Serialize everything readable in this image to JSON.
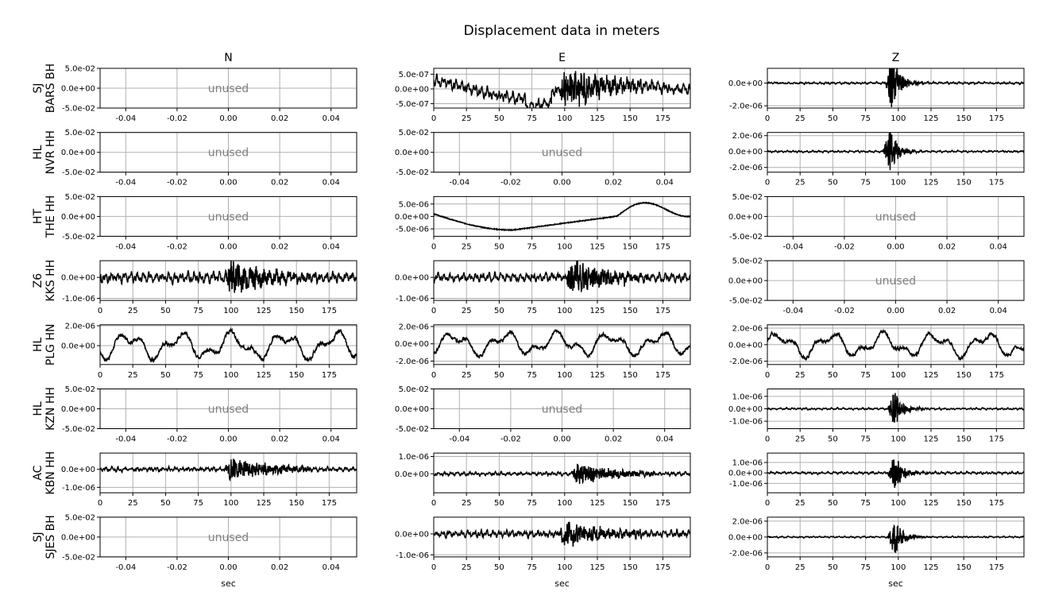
{
  "chart_data": {
    "type": "line",
    "title": "Displacement data in meters",
    "columns": [
      "N",
      "E",
      "Z"
    ],
    "xlabel": "sec",
    "unused_label": "unused",
    "line_color": "#000000",
    "unused_color": "#808080",
    "grid_color": "#b0b0b0",
    "grid": true,
    "stations": [
      {
        "network": "SJ",
        "label": "BARS BH"
      },
      {
        "network": "HL",
        "label": "NVR HH"
      },
      {
        "network": "HT",
        "label": "THE HH"
      },
      {
        "network": "Z6",
        "label": "KKS HH"
      },
      {
        "network": "HL",
        "label": "PLG HN"
      },
      {
        "network": "HL",
        "label": "KZN HH"
      },
      {
        "network": "AC",
        "label": "KBN HH"
      },
      {
        "network": "SJ",
        "label": "SJES BH"
      }
    ],
    "unused_axis": {
      "xticks": [
        "-0.04",
        "-0.02",
        "0.00",
        "0.02",
        "0.04"
      ],
      "yticks": [
        "5.0e-02",
        "0.0e+00",
        "-5.0e-02"
      ]
    },
    "time_xticks": [
      "0",
      "25",
      "50",
      "75",
      "100",
      "125",
      "150",
      "175"
    ],
    "panels": [
      [
        {
          "used": false
        },
        {
          "used": true,
          "style": "mixed",
          "amp": 2.5e-07,
          "burst_at": 100,
          "burst_amp": 6.5e-07,
          "wander": 3e-07,
          "ylim": [
            -6.5e-07,
            7e-07
          ],
          "yticks": [
            5e-07,
            0,
            -5e-07
          ],
          "ytick_labels": [
            "5.0e-07",
            "0.0e+00",
            "-5.0e-07"
          ],
          "seed": 11
        },
        {
          "used": true,
          "style": "spike",
          "amp": 1.2e-07,
          "burst_at": 95,
          "burst_amp": 2.5e-06,
          "ylim": [
            -2.2e-06,
            1.3e-06
          ],
          "yticks": [
            0,
            -2e-06
          ],
          "ytick_labels": [
            "0.0e+00",
            "-2.0e-06"
          ],
          "seed": 12
        }
      ],
      [
        {
          "used": false
        },
        {
          "used": false
        },
        {
          "used": true,
          "style": "spike",
          "amp": 1.5e-07,
          "burst_at": 93,
          "burst_amp": 3e-06,
          "ylim": [
            -2.6e-06,
            2.4e-06
          ],
          "yticks": [
            2e-06,
            0,
            -2e-06
          ],
          "ytick_labels": [
            "2.0e-06",
            "0.0e+00",
            "-2.0e-06"
          ],
          "seed": 13
        }
      ],
      [
        {
          "used": false
        },
        {
          "used": true,
          "style": "smooth",
          "ylim": [
            -8e-06,
            8e-06
          ],
          "yticks": [
            5e-06,
            0,
            -5e-06
          ],
          "ytick_labels": [
            "5.0e-06",
            "0.0e+00",
            "-5.0e-06"
          ],
          "seed": 14
        },
        {
          "used": false
        }
      ],
      [
        {
          "used": true,
          "style": "noise",
          "amp": 3e-07,
          "burst_at": 100,
          "burst_amp": 8e-07,
          "ylim": [
            -1.1e-06,
            8e-07
          ],
          "yticks": [
            0,
            -1e-06
          ],
          "ytick_labels": [
            "0.0e+00",
            "-1.0e-06"
          ],
          "seed": 15
        },
        {
          "used": true,
          "style": "noise",
          "amp": 2.5e-07,
          "burst_at": 105,
          "burst_amp": 8e-07,
          "ylim": [
            -1.1e-06,
            8e-07
          ],
          "yticks": [
            0,
            -1e-06
          ],
          "ytick_labels": [
            "0.0e+00",
            "-1.0e-06"
          ],
          "seed": 16
        },
        {
          "used": false
        }
      ],
      [
        {
          "used": true,
          "style": "wave",
          "amp": 1.2e-06,
          "ylim": [
            -1.9e-06,
            2.1e-06
          ],
          "yticks": [
            2e-06,
            0
          ],
          "ytick_labels": [
            "2.0e-06",
            "0.0e+00"
          ],
          "seed": 17
        },
        {
          "used": true,
          "style": "wave",
          "amp": 1.2e-06,
          "ylim": [
            -2.4e-06,
            2.2e-06
          ],
          "yticks": [
            2e-06,
            0,
            -2e-06
          ],
          "ytick_labels": [
            "2.0e-06",
            "0.0e+00",
            "-2.0e-06"
          ],
          "seed": 18
        },
        {
          "used": true,
          "style": "wave",
          "amp": 1.3e-06,
          "ylim": [
            -2.4e-06,
            2.4e-06
          ],
          "yticks": [
            2e-06,
            0,
            -2e-06
          ],
          "ytick_labels": [
            "2.0e-06",
            "0.0e+00",
            "-2.0e-06"
          ],
          "seed": 19
        }
      ],
      [
        {
          "used": false
        },
        {
          "used": false
        },
        {
          "used": true,
          "style": "spike",
          "amp": 1e-07,
          "burst_at": 97,
          "burst_amp": 1.5e-06,
          "ylim": [
            -1.6e-06,
            1.6e-06
          ],
          "yticks": [
            1e-06,
            0,
            -1e-06
          ],
          "ytick_labels": [
            "1.0e-06",
            "0.0e+00",
            "-1.0e-06"
          ],
          "seed": 20
        }
      ],
      [
        {
          "used": true,
          "style": "noise",
          "amp": 1.5e-07,
          "burst_at": 100,
          "burst_amp": 6.5e-07,
          "ylim": [
            -1.3e-06,
            9e-07
          ],
          "yticks": [
            0,
            -1e-06
          ],
          "ytick_labels": [
            "0.0e+00",
            "-1.0e-06"
          ],
          "seed": 21
        },
        {
          "used": true,
          "style": "noise",
          "amp": 1.3e-07,
          "burst_at": 110,
          "burst_amp": 6e-07,
          "ylim": [
            -1.1e-06,
            1.2e-06
          ],
          "yticks": [
            1e-06,
            0
          ],
          "ytick_labels": [
            "1.0e-06",
            "0.0e+00"
          ],
          "seed": 22
        },
        {
          "used": true,
          "style": "spike",
          "amp": 1.5e-07,
          "burst_at": 97,
          "burst_amp": 1.8e-06,
          "ylim": [
            -1.9e-06,
            1.9e-06
          ],
          "yticks": [
            1e-06,
            0,
            -1e-06
          ],
          "ytick_labels": [
            "1.0e-06",
            "0.0e+00",
            "-1.0e-06"
          ],
          "seed": 23
        }
      ],
      [
        {
          "used": false
        },
        {
          "used": true,
          "style": "noise",
          "amp": 2e-07,
          "burst_at": 100,
          "burst_amp": 6.5e-07,
          "ylim": [
            -1.1e-06,
            8e-07
          ],
          "yticks": [
            0,
            -1e-06
          ],
          "ytick_labels": [
            "0.0e+00",
            "-1.0e-06"
          ],
          "seed": 24
        },
        {
          "used": true,
          "style": "spike",
          "amp": 1.2e-07,
          "burst_at": 97,
          "burst_amp": 2.6e-06,
          "ylim": [
            -2.5e-06,
            2.5e-06
          ],
          "yticks": [
            2e-06,
            0,
            -2e-06
          ],
          "ytick_labels": [
            "2.0e-06",
            "0.0e+00",
            "-2.0e-06"
          ],
          "seed": 25
        }
      ]
    ]
  }
}
